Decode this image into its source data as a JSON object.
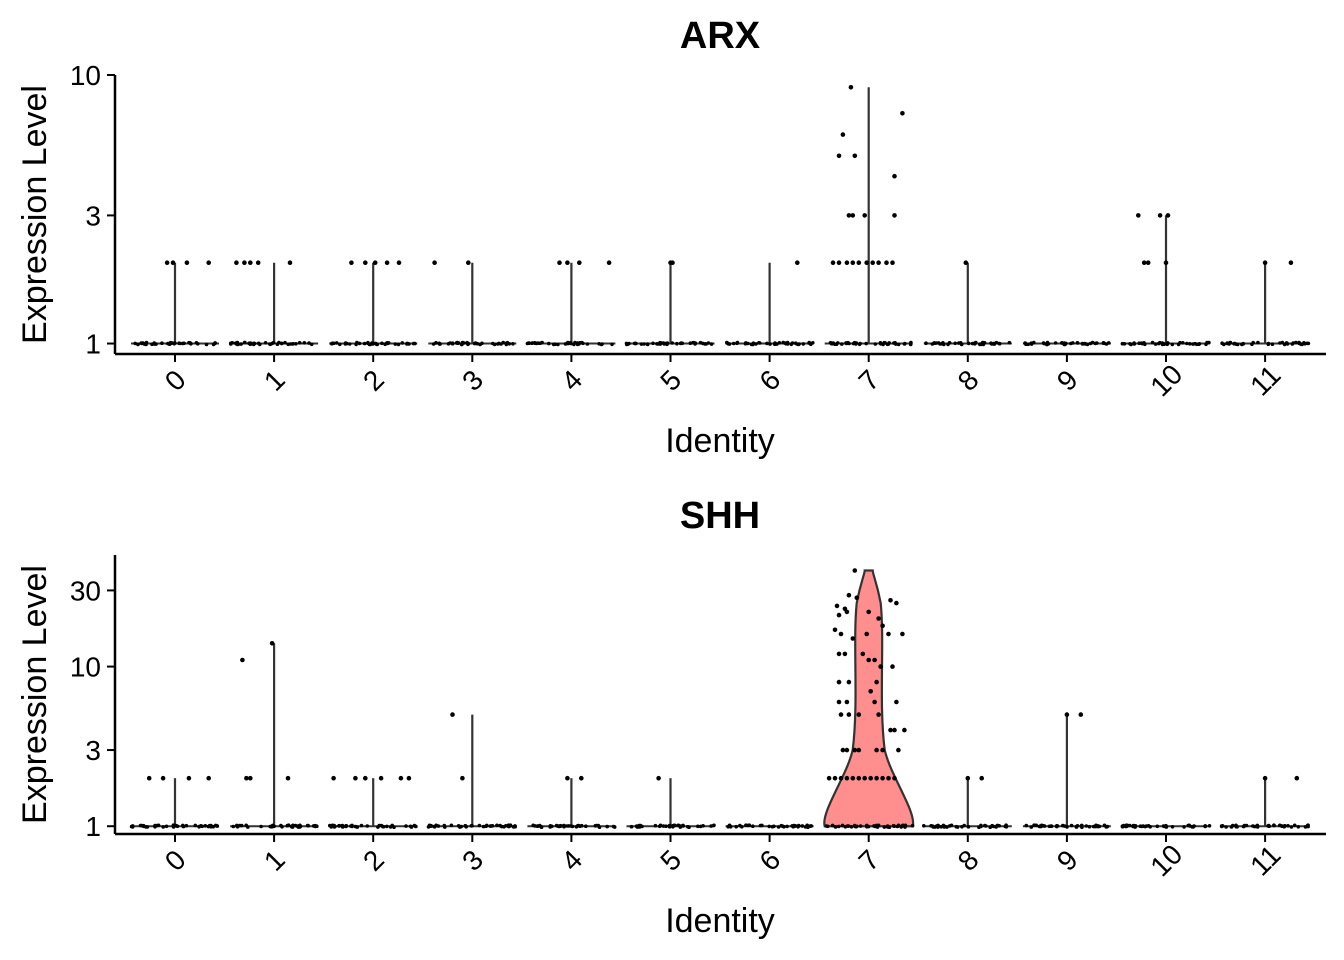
{
  "colors": {
    "violin_fill": "#ff8f8f",
    "violin_stroke": "#333333",
    "points": "#000000",
    "axis": "#000000"
  },
  "chart_data": [
    {
      "type": "violin",
      "title": "ARX",
      "xlabel": "Identity",
      "ylabel": "Expression Level",
      "y_scale": "log",
      "categories": [
        "0",
        "1",
        "2",
        "3",
        "4",
        "5",
        "6",
        "7",
        "8",
        "9",
        "10",
        "11"
      ],
      "yticks": [
        1,
        3,
        10
      ],
      "ylim": [
        0.93,
        10
      ],
      "violin_max": [
        2,
        2,
        2,
        2,
        2,
        2,
        2,
        9,
        2,
        1,
        3,
        2
      ],
      "violin_filled": false,
      "outliers": [
        {
          "c": 0,
          "pts": [
            [
              -0.08,
              2
            ],
            [
              -0.02,
              2
            ],
            [
              0.12,
              2
            ],
            [
              0.34,
              2
            ]
          ]
        },
        {
          "c": 1,
          "pts": [
            [
              -0.38,
              2
            ],
            [
              -0.3,
              2
            ],
            [
              -0.24,
              2
            ],
            [
              -0.16,
              2
            ],
            [
              0.16,
              2
            ]
          ]
        },
        {
          "c": 2,
          "pts": [
            [
              -0.22,
              2
            ],
            [
              -0.08,
              2
            ],
            [
              0.02,
              2
            ],
            [
              0.14,
              2
            ],
            [
              0.26,
              2
            ]
          ]
        },
        {
          "c": 3,
          "pts": [
            [
              -0.38,
              2
            ],
            [
              -0.04,
              2
            ]
          ]
        },
        {
          "c": 4,
          "pts": [
            [
              -0.12,
              2
            ],
            [
              -0.04,
              2
            ],
            [
              0.08,
              2
            ],
            [
              0.38,
              2
            ]
          ]
        },
        {
          "c": 5,
          "pts": [
            [
              0.0,
              2
            ],
            [
              0.02,
              2
            ]
          ]
        },
        {
          "c": 6,
          "pts": [
            [
              0.28,
              2
            ]
          ]
        },
        {
          "c": 7,
          "pts": [
            [
              -0.18,
              9
            ],
            [
              -0.26,
              6
            ],
            [
              -0.3,
              5
            ],
            [
              -0.14,
              5
            ],
            [
              0.34,
              7.2
            ],
            [
              0.26,
              4.2
            ],
            [
              -0.2,
              3
            ],
            [
              -0.16,
              3
            ],
            [
              -0.04,
              3
            ],
            [
              0.26,
              3
            ],
            [
              -0.36,
              2
            ],
            [
              -0.3,
              2
            ],
            [
              -0.22,
              2
            ],
            [
              -0.16,
              2
            ],
            [
              -0.1,
              2
            ],
            [
              -0.02,
              2
            ],
            [
              0.04,
              2
            ],
            [
              0.1,
              2
            ],
            [
              0.18,
              2
            ],
            [
              0.24,
              2
            ]
          ]
        },
        {
          "c": 8,
          "pts": [
            [
              -0.02,
              2
            ]
          ]
        },
        {
          "c": 10,
          "pts": [
            [
              -0.28,
              3
            ],
            [
              -0.06,
              3
            ],
            [
              0.02,
              3
            ],
            [
              -0.22,
              2
            ],
            [
              -0.18,
              2
            ],
            [
              0.0,
              2
            ]
          ]
        },
        {
          "c": 11,
          "pts": [
            [
              0.0,
              2
            ],
            [
              0.26,
              2
            ]
          ]
        }
      ]
    },
    {
      "type": "violin",
      "title": "SHH",
      "xlabel": "Identity",
      "ylabel": "Expression Level",
      "y_scale": "log",
      "categories": [
        "0",
        "1",
        "2",
        "3",
        "4",
        "5",
        "6",
        "7",
        "8",
        "9",
        "10",
        "11"
      ],
      "yticks": [
        1,
        3,
        10,
        30
      ],
      "ylim": [
        0.92,
        50
      ],
      "violin_max": [
        2,
        14,
        2,
        5,
        2,
        2,
        1,
        40,
        2,
        5,
        1,
        2
      ],
      "violin_filled": [
        false,
        false,
        false,
        false,
        false,
        false,
        false,
        true,
        false,
        false,
        false,
        false
      ],
      "outliers": [
        {
          "c": 0,
          "pts": [
            [
              -0.26,
              2
            ],
            [
              -0.12,
              2
            ],
            [
              0.14,
              2
            ],
            [
              0.34,
              2
            ]
          ]
        },
        {
          "c": 1,
          "pts": [
            [
              -0.32,
              11
            ],
            [
              -0.02,
              14
            ],
            [
              -0.28,
              2
            ],
            [
              -0.24,
              2
            ],
            [
              0.14,
              2
            ]
          ]
        },
        {
          "c": 2,
          "pts": [
            [
              -0.4,
              2
            ],
            [
              -0.18,
              2
            ],
            [
              -0.08,
              2
            ],
            [
              0.08,
              2
            ],
            [
              0.28,
              2
            ],
            [
              0.36,
              2
            ]
          ]
        },
        {
          "c": 3,
          "pts": [
            [
              -0.2,
              5
            ],
            [
              -0.1,
              2
            ]
          ]
        },
        {
          "c": 4,
          "pts": [
            [
              -0.04,
              2
            ],
            [
              0.1,
              2
            ]
          ]
        },
        {
          "c": 5,
          "pts": [
            [
              -0.12,
              2
            ]
          ]
        },
        {
          "c": 7,
          "pts": [
            [
              -0.14,
              40
            ],
            [
              -0.32,
              24
            ],
            [
              -0.24,
              23
            ],
            [
              -0.2,
              28
            ],
            [
              -0.12,
              27
            ],
            [
              0.22,
              26
            ],
            [
              0.28,
              25
            ],
            [
              -0.3,
              21
            ],
            [
              -0.22,
              22
            ],
            [
              0.0,
              22
            ],
            [
              0.1,
              20
            ],
            [
              0.14,
              18
            ],
            [
              -0.34,
              17
            ],
            [
              -0.28,
              16
            ],
            [
              -0.16,
              15
            ],
            [
              -0.02,
              16
            ],
            [
              0.2,
              16
            ],
            [
              0.34,
              16
            ],
            [
              -0.3,
              12
            ],
            [
              -0.24,
              12
            ],
            [
              -0.06,
              12
            ],
            [
              0.0,
              11
            ],
            [
              0.06,
              11
            ],
            [
              0.12,
              10
            ],
            [
              0.24,
              10
            ],
            [
              -0.3,
              8
            ],
            [
              -0.2,
              8
            ],
            [
              0.08,
              8
            ],
            [
              0.02,
              7
            ],
            [
              -0.3,
              6
            ],
            [
              -0.22,
              6
            ],
            [
              0.06,
              6
            ],
            [
              0.28,
              6
            ],
            [
              -0.28,
              5
            ],
            [
              -0.2,
              5
            ],
            [
              -0.1,
              5
            ],
            [
              0.1,
              5
            ],
            [
              0.22,
              4
            ],
            [
              0.26,
              4
            ],
            [
              0.36,
              4
            ],
            [
              -0.26,
              3
            ],
            [
              -0.22,
              3
            ],
            [
              -0.14,
              3
            ],
            [
              -0.1,
              3
            ],
            [
              0.08,
              3
            ],
            [
              0.14,
              3
            ],
            [
              0.3,
              3
            ],
            [
              -0.4,
              2
            ],
            [
              -0.34,
              2
            ],
            [
              -0.28,
              2
            ],
            [
              -0.22,
              2
            ],
            [
              -0.16,
              2
            ],
            [
              -0.1,
              2
            ],
            [
              -0.04,
              2
            ],
            [
              0.02,
              2
            ],
            [
              0.08,
              2
            ],
            [
              0.14,
              2
            ],
            [
              0.2,
              2
            ],
            [
              0.26,
              2
            ]
          ]
        },
        {
          "c": 8,
          "pts": [
            [
              0.0,
              2
            ],
            [
              0.14,
              2
            ]
          ]
        },
        {
          "c": 9,
          "pts": [
            [
              0.0,
              5
            ],
            [
              0.14,
              5
            ]
          ]
        },
        {
          "c": 11,
          "pts": [
            [
              0.0,
              2
            ],
            [
              0.32,
              2
            ]
          ]
        }
      ]
    }
  ]
}
